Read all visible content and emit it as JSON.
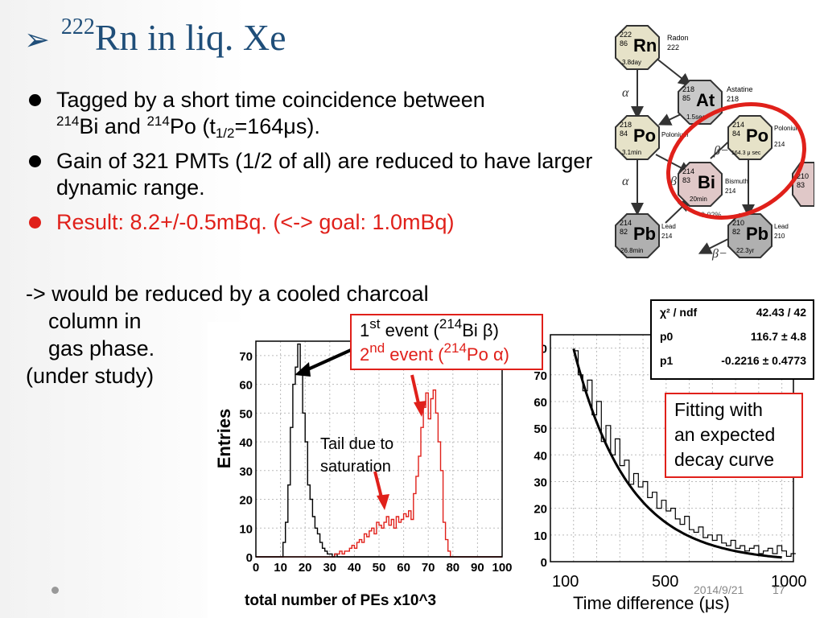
{
  "slide": {
    "title_arrow": "➢",
    "title_mass": "222",
    "title_text": "Rn in liq. Xe",
    "bullets": [
      {
        "pre": "Tagged by a short time coincidence between ",
        "line2_sup1": "214",
        "line2_a": "Bi and ",
        "line2_sup2": "214",
        "line2_b": "Po (t",
        "line2_sub": "1/2",
        "line2_c": "=164μs)."
      },
      {
        "text": "Gain of 321 PMTs (1/2 of all) are reduced to have larger dynamic range."
      },
      {
        "text": "Result:  8.2+/-0.5mBq. (<-> goal: 1.0mBq)"
      }
    ],
    "note_lines": [
      "-> would be reduced by a cooled charcoal",
      "column in",
      "gas phase.",
      "(under study)"
    ],
    "footer_date": "2014/9/21",
    "footer_page": "17"
  },
  "decay_chain": {
    "nodes": [
      {
        "sym": "Rn",
        "a": "222",
        "z": "86",
        "t": "3.8day",
        "name": "Radon",
        "name2": "222"
      },
      {
        "sym": "At",
        "a": "218",
        "z": "85",
        "t": "1.5sec",
        "name": "Astatine",
        "name2": "218"
      },
      {
        "sym": "Po",
        "a": "218",
        "z": "84",
        "t": "3.1min",
        "name": "Polonium",
        "name2": ""
      },
      {
        "sym": "Po",
        "a": "214",
        "z": "84",
        "t": "164.3 μ sec",
        "name": "Polonium",
        "name2": "214"
      },
      {
        "sym": "Bi",
        "a": "214",
        "z": "83",
        "t": "20min",
        "name": "Bismuth",
        "name2": "214"
      },
      {
        "sym": "Pb",
        "a": "214",
        "z": "82",
        "t": "26.8min",
        "name": "Lead",
        "name2": "214"
      },
      {
        "sym": "Pb",
        "a": "210",
        "z": "82",
        "t": "22.3yr",
        "name": "Lead",
        "name2": "210"
      },
      {
        "sym": "",
        "a": "210",
        "z": "83",
        "t": "",
        "name": "",
        "name2": ""
      }
    ],
    "labels": {
      "alpha": "α",
      "beta": "β",
      "beta_minus": "β−",
      "branch": "0.02%"
    }
  },
  "callouts": {
    "first_pre": "1",
    "first_sup": "st",
    "first_mid": " event (",
    "first_iso": "214",
    "first_post": "Bi β)",
    "second_pre": "2",
    "second_sup": "nd",
    "second_mid": " event (",
    "second_iso": "214",
    "second_post": "Po α)",
    "fit_lines": [
      "Fitting with",
      "an expected",
      "decay curve"
    ],
    "tail_lines": [
      "Tail due to",
      "saturation"
    ]
  },
  "fit_stats": {
    "rows": [
      {
        "key": "χ² / ndf",
        "value": "42.43 / 42"
      },
      {
        "key": "p0",
        "value": "116.7 ± 4.8"
      },
      {
        "key": "p1",
        "value": "-0.2216 ± 0.4773"
      }
    ]
  },
  "chart_data": [
    {
      "type": "histogram",
      "ylabel": "Entries",
      "xlabel": "total number of PEs x10^3",
      "xlim": [
        0,
        100
      ],
      "ylim": [
        0,
        75
      ],
      "xticks": [
        "0",
        "10",
        "20",
        "30",
        "40",
        "50",
        "60",
        "70",
        "80",
        "90",
        "100"
      ],
      "yticks": [
        "0",
        "10",
        "20",
        "30",
        "40",
        "50",
        "60",
        "70"
      ],
      "series": [
        {
          "color": "#000000",
          "bin_width": 1,
          "x_start": 0,
          "values": [
            0,
            0,
            0,
            0,
            0,
            0,
            0,
            0,
            0,
            0,
            0,
            5,
            12,
            25,
            45,
            60,
            66,
            74,
            64,
            50,
            40,
            25,
            20,
            14,
            10,
            8,
            5,
            3,
            2,
            1,
            1,
            0,
            1,
            0,
            0,
            0,
            0,
            0,
            0,
            0,
            0,
            0,
            0,
            0,
            0,
            0,
            0,
            0,
            0,
            0,
            0,
            0,
            0,
            0,
            0,
            0,
            0,
            0,
            0,
            0,
            0,
            0,
            0,
            0,
            0,
            0,
            0,
            0,
            0,
            0,
            0,
            0,
            0,
            0,
            0,
            0,
            0,
            0,
            0,
            0,
            0,
            0,
            0,
            0,
            0,
            0,
            0,
            0,
            0,
            0,
            0,
            0,
            0,
            0,
            0,
            0,
            0,
            0,
            0,
            0
          ]
        },
        {
          "color": "#e0201a",
          "bin_width": 1,
          "x_start": 0,
          "values": [
            0,
            0,
            0,
            0,
            0,
            0,
            0,
            0,
            0,
            0,
            0,
            0,
            0,
            0,
            0,
            0,
            0,
            0,
            0,
            0,
            0,
            0,
            0,
            0,
            0,
            0,
            0,
            0,
            0,
            0,
            0,
            0,
            1,
            1,
            2,
            1,
            2,
            2,
            3,
            4,
            3,
            5,
            6,
            5,
            8,
            7,
            9,
            10,
            8,
            12,
            11,
            10,
            12,
            14,
            11,
            13,
            10,
            14,
            12,
            13,
            15,
            14,
            16,
            13,
            22,
            28,
            35,
            45,
            52,
            57,
            48,
            55,
            58,
            50,
            40,
            30,
            12,
            6,
            2,
            0,
            0,
            0,
            0,
            0,
            0,
            0,
            0,
            0,
            0,
            0,
            0,
            0,
            0,
            0,
            0,
            0,
            0,
            0,
            0,
            0
          ]
        }
      ]
    },
    {
      "type": "histogram",
      "xlabel": "Time difference (μs)",
      "xlim": [
        0,
        1050
      ],
      "ylim": [
        0,
        85
      ],
      "xticks": [
        "100",
        "500",
        "1000"
      ],
      "yticks": [
        "0",
        "10",
        "20",
        "30",
        "40",
        "50",
        "60",
        "70",
        "80"
      ],
      "series": [
        {
          "color": "#000000",
          "bin_width": 20,
          "x_start": 100,
          "values": [
            79,
            70,
            64,
            68,
            55,
            60,
            45,
            51,
            40,
            46,
            36,
            38,
            29,
            33,
            28,
            30,
            24,
            26,
            20,
            23,
            19,
            20,
            16,
            14,
            17,
            12,
            11,
            13,
            9,
            10,
            8,
            10,
            7,
            6,
            8,
            5,
            6,
            4,
            5,
            6,
            3,
            4,
            5,
            3,
            6,
            4,
            2,
            3
          ]
        },
        {
          "color": "#000000",
          "type": "fit_curve",
          "p0": 116.7,
          "p1": -0.2216,
          "halflife_us": 164.3
        }
      ]
    }
  ]
}
